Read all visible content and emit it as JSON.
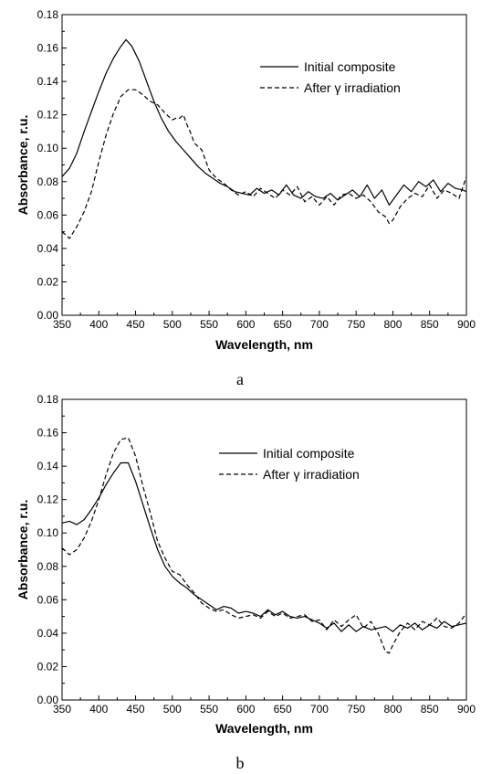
{
  "chart_data": [
    {
      "type": "line",
      "panel_label": "a",
      "xlabel": "Wavelength, nm",
      "ylabel": "Absorbance, r.u.",
      "xlim": [
        350,
        900
      ],
      "ylim": [
        0.0,
        0.18
      ],
      "xticks": [
        "350",
        "400",
        "450",
        "500",
        "550",
        "600",
        "650",
        "700",
        "750",
        "800",
        "850",
        "900"
      ],
      "yticks": [
        "0.00",
        "0.02",
        "0.04",
        "0.06",
        "0.08",
        "0.10",
        "0.12",
        "0.14",
        "0.16",
        "0.18"
      ],
      "legend_position": "top-right",
      "series": [
        {
          "name": "Initial composite",
          "style": "solid",
          "x": [
            350,
            360,
            370,
            380,
            390,
            400,
            410,
            420,
            430,
            437,
            445,
            455,
            465,
            475,
            485,
            495,
            505,
            515,
            525,
            535,
            545,
            555,
            565,
            575,
            585,
            595,
            605,
            615,
            625,
            635,
            645,
            655,
            665,
            675,
            685,
            695,
            705,
            715,
            725,
            735,
            745,
            755,
            765,
            775,
            785,
            795,
            805,
            815,
            825,
            835,
            845,
            855,
            865,
            875,
            885,
            895,
            900
          ],
          "values": [
            0.083,
            0.088,
            0.097,
            0.11,
            0.122,
            0.134,
            0.145,
            0.154,
            0.161,
            0.165,
            0.161,
            0.152,
            0.14,
            0.128,
            0.118,
            0.11,
            0.104,
            0.099,
            0.094,
            0.089,
            0.085,
            0.082,
            0.079,
            0.077,
            0.074,
            0.073,
            0.072,
            0.076,
            0.073,
            0.075,
            0.072,
            0.078,
            0.072,
            0.07,
            0.074,
            0.071,
            0.07,
            0.073,
            0.069,
            0.072,
            0.075,
            0.071,
            0.078,
            0.07,
            0.075,
            0.066,
            0.072,
            0.078,
            0.074,
            0.08,
            0.077,
            0.081,
            0.074,
            0.079,
            0.076,
            0.075,
            0.074
          ]
        },
        {
          "name": "After γ irradiation",
          "style": "dashed",
          "x": [
            350,
            360,
            370,
            380,
            390,
            400,
            410,
            420,
            430,
            440,
            450,
            460,
            470,
            480,
            490,
            500,
            505,
            510,
            515,
            520,
            525,
            530,
            540,
            550,
            560,
            570,
            580,
            590,
            600,
            610,
            620,
            630,
            640,
            650,
            660,
            670,
            680,
            690,
            700,
            710,
            720,
            730,
            740,
            750,
            760,
            770,
            780,
            790,
            795,
            800,
            810,
            820,
            830,
            840,
            850,
            860,
            870,
            880,
            890,
            900
          ],
          "values": [
            0.05,
            0.046,
            0.053,
            0.062,
            0.074,
            0.092,
            0.108,
            0.121,
            0.131,
            0.135,
            0.135,
            0.132,
            0.128,
            0.126,
            0.121,
            0.117,
            0.118,
            0.118,
            0.12,
            0.114,
            0.109,
            0.103,
            0.099,
            0.087,
            0.082,
            0.079,
            0.075,
            0.072,
            0.074,
            0.071,
            0.076,
            0.073,
            0.07,
            0.075,
            0.072,
            0.077,
            0.068,
            0.071,
            0.066,
            0.071,
            0.066,
            0.072,
            0.073,
            0.07,
            0.072,
            0.068,
            0.062,
            0.059,
            0.055,
            0.057,
            0.065,
            0.07,
            0.073,
            0.071,
            0.078,
            0.07,
            0.075,
            0.073,
            0.07,
            0.083
          ]
        }
      ]
    },
    {
      "type": "line",
      "panel_label": "b",
      "xlabel": "Wavelength, nm",
      "ylabel": "Absorbance, r.u.",
      "xlim": [
        350,
        900
      ],
      "ylim": [
        0.0,
        0.18
      ],
      "xticks": [
        "350",
        "400",
        "450",
        "500",
        "550",
        "600",
        "650",
        "700",
        "750",
        "800",
        "850",
        "900"
      ],
      "yticks": [
        "0.00",
        "0.02",
        "0.04",
        "0.06",
        "0.08",
        "0.10",
        "0.12",
        "0.14",
        "0.16",
        "0.18"
      ],
      "legend_position": "top-right",
      "series": [
        {
          "name": "Initial composite",
          "style": "solid",
          "x": [
            350,
            360,
            370,
            380,
            390,
            400,
            410,
            420,
            430,
            440,
            450,
            460,
            470,
            480,
            490,
            500,
            510,
            520,
            530,
            540,
            550,
            560,
            570,
            580,
            590,
            600,
            610,
            620,
            630,
            640,
            650,
            660,
            670,
            680,
            690,
            700,
            710,
            720,
            730,
            740,
            750,
            760,
            770,
            780,
            790,
            800,
            810,
            820,
            830,
            840,
            850,
            860,
            870,
            880,
            890,
            900
          ],
          "values": [
            0.106,
            0.107,
            0.105,
            0.108,
            0.114,
            0.121,
            0.129,
            0.136,
            0.142,
            0.142,
            0.131,
            0.117,
            0.103,
            0.09,
            0.08,
            0.074,
            0.07,
            0.067,
            0.063,
            0.06,
            0.057,
            0.054,
            0.056,
            0.055,
            0.052,
            0.053,
            0.052,
            0.05,
            0.054,
            0.051,
            0.053,
            0.05,
            0.049,
            0.05,
            0.048,
            0.046,
            0.043,
            0.046,
            0.041,
            0.045,
            0.041,
            0.044,
            0.042,
            0.043,
            0.044,
            0.041,
            0.045,
            0.043,
            0.046,
            0.042,
            0.045,
            0.043,
            0.047,
            0.044,
            0.045,
            0.046
          ]
        },
        {
          "name": "After γ irradiation",
          "style": "dashed",
          "x": [
            350,
            360,
            370,
            380,
            390,
            400,
            410,
            420,
            430,
            440,
            450,
            460,
            470,
            480,
            490,
            500,
            510,
            520,
            530,
            540,
            550,
            560,
            570,
            580,
            590,
            600,
            610,
            620,
            630,
            640,
            650,
            660,
            670,
            680,
            690,
            700,
            710,
            720,
            730,
            740,
            750,
            760,
            770,
            780,
            790,
            795,
            800,
            810,
            820,
            830,
            840,
            850,
            860,
            870,
            880,
            890,
            900
          ],
          "values": [
            0.091,
            0.087,
            0.09,
            0.097,
            0.107,
            0.12,
            0.135,
            0.148,
            0.156,
            0.157,
            0.146,
            0.128,
            0.112,
            0.095,
            0.085,
            0.077,
            0.075,
            0.069,
            0.064,
            0.058,
            0.055,
            0.053,
            0.054,
            0.051,
            0.049,
            0.05,
            0.051,
            0.049,
            0.053,
            0.05,
            0.052,
            0.049,
            0.05,
            0.051,
            0.047,
            0.048,
            0.042,
            0.048,
            0.044,
            0.048,
            0.051,
            0.043,
            0.047,
            0.04,
            0.029,
            0.028,
            0.033,
            0.041,
            0.046,
            0.042,
            0.047,
            0.045,
            0.049,
            0.044,
            0.043,
            0.046,
            0.052
          ]
        }
      ]
    }
  ]
}
